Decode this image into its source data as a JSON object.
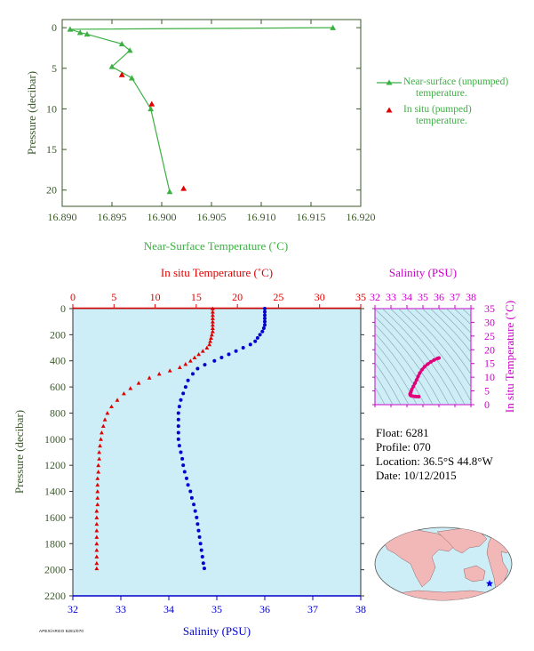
{
  "colors": {
    "green": "#3cb043",
    "axis_green": "#3a5a2a",
    "red": "#e00000",
    "blue": "#0000cc",
    "magenta": "#cc00cc",
    "pink": "#e0007a",
    "panel_bg": "#cdeef7",
    "land": "#f2b8b8"
  },
  "info": {
    "float": "Float:  6281",
    "profile": "Profile:  070",
    "location": "Location:  36.5°S  44.8°W",
    "date": "Date:  10/12/2015"
  },
  "legend": {
    "near_surface_line1": "Near-surface (unpumped)",
    "near_surface_line2": "temperature.",
    "in_situ_line1": "In situ (pumped)",
    "in_situ_line2": "temperature."
  },
  "footer_id": "APEX/ARGO 6281/070",
  "chart_data": [
    {
      "type": "line",
      "xlabel": "Near-Surface Temperature (˚C)",
      "ylabel": "Pressure (decibar)",
      "xlim": [
        16.89,
        16.92
      ],
      "ylim": [
        22,
        -1
      ],
      "xticks": [
        "16.890",
        "16.895",
        "16.900",
        "16.905",
        "16.910",
        "16.915",
        "16.920"
      ],
      "yticks": [
        "0",
        "5",
        "10",
        "15",
        "20"
      ],
      "y_reversed": true,
      "grid": false,
      "legend_position": "right",
      "series": [
        {
          "name": "Near-surface (unpumped) temperature.",
          "marker": "triangle",
          "points": [
            [
              16.9172,
              0.0
            ],
            [
              16.8908,
              0.2
            ],
            [
              16.8918,
              0.6
            ],
            [
              16.8925,
              0.8
            ],
            [
              16.896,
              2.0
            ],
            [
              16.8968,
              2.8
            ],
            [
              16.895,
              4.8
            ],
            [
              16.897,
              6.2
            ],
            [
              16.8989,
              10.0
            ],
            [
              16.9008,
              20.2
            ]
          ]
        },
        {
          "name": "In situ (pumped) temperature.",
          "marker": "triangle",
          "points": [
            [
              16.896,
              5.8
            ],
            [
              16.899,
              9.4
            ],
            [
              16.9022,
              19.8
            ]
          ]
        }
      ]
    },
    {
      "type": "scatter",
      "top_xlabel": "In situ Temperature (˚C)",
      "bottom_xlabel": "Salinity (PSU)",
      "ylabel": "Pressure (decibar)",
      "temperature_xlim": [
        0,
        35
      ],
      "salinity_xlim": [
        32,
        38
      ],
      "ylim": [
        2200,
        0
      ],
      "temperature_ticks": [
        "0",
        "5",
        "10",
        "15",
        "20",
        "25",
        "30",
        "35"
      ],
      "salinity_ticks": [
        "32",
        "33",
        "34",
        "35",
        "36",
        "37",
        "38"
      ],
      "pressure_ticks": [
        "0",
        "200",
        "400",
        "600",
        "800",
        "1000",
        "1200",
        "1400",
        "1600",
        "1800",
        "2000",
        "2200"
      ],
      "series": [
        {
          "name": "In situ Temperature",
          "marker": "triangle",
          "points": [
            [
              17.0,
              0
            ],
            [
              17.0,
              25
            ],
            [
              17.0,
              50
            ],
            [
              17.0,
              75
            ],
            [
              17.0,
              100
            ],
            [
              17.0,
              125
            ],
            [
              17.0,
              150
            ],
            [
              17.0,
              175
            ],
            [
              16.9,
              200
            ],
            [
              16.8,
              225
            ],
            [
              16.7,
              250
            ],
            [
              16.6,
              275
            ],
            [
              16.3,
              300
            ],
            [
              15.8,
              325
            ],
            [
              15.3,
              350
            ],
            [
              14.8,
              375
            ],
            [
              14.3,
              400
            ],
            [
              13.7,
              425
            ],
            [
              13.0,
              450
            ],
            [
              11.8,
              475
            ],
            [
              10.5,
              500
            ],
            [
              9.3,
              530
            ],
            [
              8.0,
              570
            ],
            [
              7.0,
              610
            ],
            [
              6.2,
              650
            ],
            [
              5.4,
              700
            ],
            [
              4.7,
              750
            ],
            [
              4.2,
              800
            ],
            [
              3.9,
              850
            ],
            [
              3.7,
              900
            ],
            [
              3.5,
              950
            ],
            [
              3.4,
              1000
            ],
            [
              3.3,
              1050
            ],
            [
              3.2,
              1100
            ],
            [
              3.2,
              1150
            ],
            [
              3.1,
              1200
            ],
            [
              3.1,
              1250
            ],
            [
              3.0,
              1300
            ],
            [
              3.0,
              1350
            ],
            [
              3.0,
              1400
            ],
            [
              3.0,
              1450
            ],
            [
              3.0,
              1500
            ],
            [
              2.9,
              1550
            ],
            [
              2.9,
              1600
            ],
            [
              2.9,
              1650
            ],
            [
              2.9,
              1700
            ],
            [
              2.9,
              1750
            ],
            [
              2.9,
              1800
            ],
            [
              2.9,
              1850
            ],
            [
              2.9,
              1900
            ],
            [
              2.9,
              1950
            ],
            [
              2.9,
              1990
            ]
          ]
        },
        {
          "name": "Salinity",
          "marker": "circle",
          "points": [
            [
              36.0,
              0
            ],
            [
              36.0,
              25
            ],
            [
              36.0,
              50
            ],
            [
              36.0,
              75
            ],
            [
              36.0,
              100
            ],
            [
              36.0,
              125
            ],
            [
              35.98,
              150
            ],
            [
              35.95,
              175
            ],
            [
              35.9,
              200
            ],
            [
              35.85,
              225
            ],
            [
              35.8,
              250
            ],
            [
              35.7,
              275
            ],
            [
              35.55,
              300
            ],
            [
              35.4,
              325
            ],
            [
              35.25,
              350
            ],
            [
              35.1,
              375
            ],
            [
              34.95,
              400
            ],
            [
              34.75,
              430
            ],
            [
              34.6,
              460
            ],
            [
              34.5,
              500
            ],
            [
              34.4,
              550
            ],
            [
              34.35,
              600
            ],
            [
              34.3,
              650
            ],
            [
              34.25,
              700
            ],
            [
              34.22,
              750
            ],
            [
              34.2,
              800
            ],
            [
              34.2,
              850
            ],
            [
              34.2,
              900
            ],
            [
              34.2,
              950
            ],
            [
              34.2,
              1000
            ],
            [
              34.22,
              1050
            ],
            [
              34.25,
              1100
            ],
            [
              34.28,
              1150
            ],
            [
              34.3,
              1200
            ],
            [
              34.33,
              1250
            ],
            [
              34.37,
              1300
            ],
            [
              34.4,
              1350
            ],
            [
              34.45,
              1400
            ],
            [
              34.48,
              1450
            ],
            [
              34.52,
              1500
            ],
            [
              34.55,
              1550
            ],
            [
              34.58,
              1600
            ],
            [
              34.6,
              1650
            ],
            [
              34.62,
              1700
            ],
            [
              34.64,
              1750
            ],
            [
              34.66,
              1800
            ],
            [
              34.68,
              1850
            ],
            [
              34.7,
              1900
            ],
            [
              34.72,
              1950
            ],
            [
              34.74,
              1990
            ]
          ]
        }
      ]
    },
    {
      "type": "scatter",
      "top_xlabel": "Salinity (PSU)",
      "right_ylabel": "In situ Temperature (˚C)",
      "xlim": [
        32,
        38
      ],
      "ylim": [
        0,
        35
      ],
      "xticks": [
        "32",
        "33",
        "34",
        "35",
        "36",
        "37",
        "38"
      ],
      "yticks": [
        "0",
        "5",
        "10",
        "15",
        "20",
        "25",
        "30",
        "35"
      ],
      "series": [
        {
          "name": "T-S",
          "points": [
            [
              36.0,
              17.0
            ],
            [
              35.9,
              16.8
            ],
            [
              35.7,
              16.3
            ],
            [
              35.5,
              15.6
            ],
            [
              35.3,
              14.8
            ],
            [
              35.1,
              13.8
            ],
            [
              34.95,
              12.8
            ],
            [
              34.8,
              11.5
            ],
            [
              34.7,
              10.3
            ],
            [
              34.6,
              9.0
            ],
            [
              34.5,
              7.8
            ],
            [
              34.4,
              6.6
            ],
            [
              34.3,
              5.5
            ],
            [
              34.25,
              4.6
            ],
            [
              34.2,
              4.0
            ],
            [
              34.2,
              3.6
            ],
            [
              34.25,
              3.3
            ],
            [
              34.35,
              3.1
            ],
            [
              34.5,
              3.0
            ],
            [
              34.6,
              2.95
            ],
            [
              34.74,
              2.9
            ]
          ]
        }
      ]
    }
  ]
}
